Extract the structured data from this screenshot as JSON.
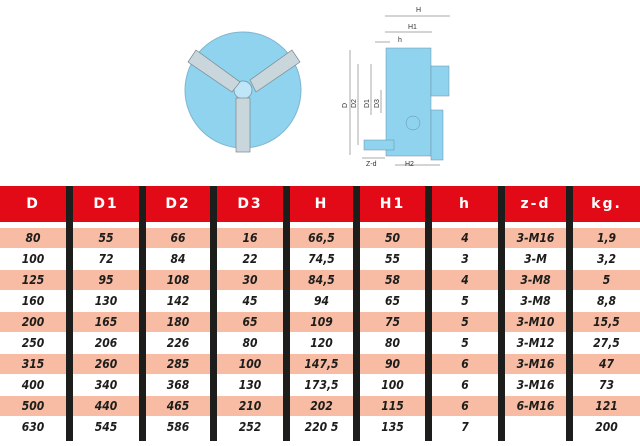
{
  "diagram": {
    "labels": [
      "H",
      "H1",
      "h",
      "D",
      "D2",
      "D1",
      "D3",
      "Z-d",
      "H2"
    ],
    "colors": {
      "body": "#8fd3ef",
      "outline": "#6a8fa3"
    }
  },
  "table": {
    "headers": [
      "D",
      "D1",
      "D2",
      "D3",
      "H",
      "H1",
      "h",
      "z-d",
      "kg."
    ],
    "rows": [
      [
        "80",
        "55",
        "66",
        "16",
        "66,5",
        "50",
        "4",
        "3-M16",
        "1,9"
      ],
      [
        "100",
        "72",
        "84",
        "22",
        "74,5",
        "55",
        "3",
        "3-M",
        "3,2"
      ],
      [
        "125",
        "95",
        "108",
        "30",
        "84,5",
        "58",
        "4",
        "3-M8",
        "5"
      ],
      [
        "160",
        "130",
        "142",
        "45",
        "94",
        "65",
        "5",
        "3-M8",
        "8,8"
      ],
      [
        "200",
        "165",
        "180",
        "65",
        "109",
        "75",
        "5",
        "3-M10",
        "15,5"
      ],
      [
        "250",
        "206",
        "226",
        "80",
        "120",
        "80",
        "5",
        "3-M12",
        "27,5"
      ],
      [
        "315",
        "260",
        "285",
        "100",
        "147,5",
        "90",
        "6",
        "3-M16",
        "47"
      ],
      [
        "400",
        "340",
        "368",
        "130",
        "173,5",
        "100",
        "6",
        "3-M16",
        "73"
      ],
      [
        "500",
        "440",
        "465",
        "210",
        "202",
        "115",
        "6",
        "6-M16",
        "121"
      ],
      [
        "630",
        "545",
        "586",
        "252",
        "220 5",
        "135",
        "7",
        "",
        "200"
      ]
    ],
    "colors": {
      "header": "#e30a17",
      "stripe": "#f7bca3",
      "separator": "#1d1d1b"
    }
  }
}
